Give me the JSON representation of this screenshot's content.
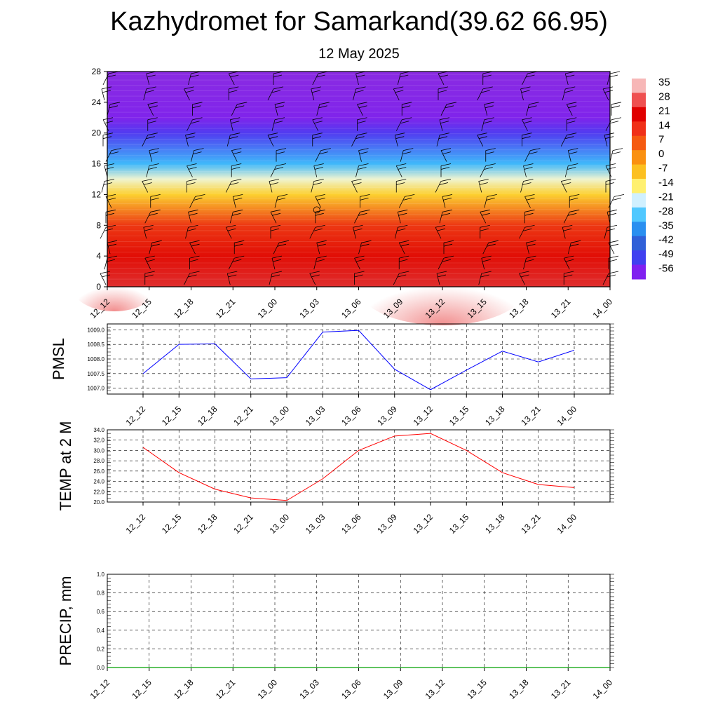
{
  "header": {
    "title": "Kazhydromet for Samarkand(39.62 66.95)",
    "subtitle": "12 May 2025"
  },
  "colors": {
    "pmsl_line": "#0000ff",
    "temp_line": "#ff0000",
    "precip_line": "#00a000",
    "grid": "#000000"
  },
  "chart_data": [
    {
      "type": "heatmap",
      "title": "",
      "x": [
        "12_12",
        "12_15",
        "12_18",
        "12_21",
        "13_00",
        "13_03",
        "13_06",
        "13_09",
        "13_12",
        "13_15",
        "13_18",
        "13_21",
        "14_00"
      ],
      "y_ticks": [
        0,
        4,
        8,
        12,
        16,
        20,
        24,
        28
      ],
      "ylim": [
        0,
        28
      ],
      "colorbar_labels": [
        "35",
        "28",
        "21",
        "14",
        "7",
        "0",
        "-7",
        "-14",
        "-21",
        "-28",
        "-35",
        "-42",
        "-49",
        "-56"
      ],
      "colorbar_colors": [
        "#f7b7b7",
        "#ef5050",
        "#e00000",
        "#f03018",
        "#f55a10",
        "#fa9010",
        "#fcc020",
        "#fff070",
        "#d0f0ff",
        "#50c8ff",
        "#2a8ff0",
        "#3060d8",
        "#4040f0",
        "#8020f0"
      ],
      "temperature_profile": [
        {
          "height": 0,
          "temp": 33
        },
        {
          "height": 4,
          "temp": 26
        },
        {
          "height": 8,
          "temp": 20
        },
        {
          "height": 12,
          "temp": 0
        },
        {
          "height": 14,
          "temp": -12
        },
        {
          "height": 16,
          "temp": -28
        },
        {
          "height": 20,
          "temp": -50
        },
        {
          "height": 22,
          "temp": -58
        },
        {
          "height": 28,
          "temp": -62
        }
      ]
    },
    {
      "type": "line",
      "ylabel": "PMSL",
      "x": [
        "12_12",
        "12_15",
        "12_18",
        "12_21",
        "13_00",
        "13_03",
        "13_06",
        "13_09",
        "13_12",
        "13_15",
        "13_18",
        "13_21",
        "14_00"
      ],
      "ylim": [
        1006.8,
        1009.2
      ],
      "y_ticks": [
        "1007.0",
        "1007.5",
        "1008.0",
        "1008.5",
        "1009.0"
      ],
      "series": [
        {
          "values": [
            1007.5,
            1008.5,
            1008.52,
            1007.32,
            1007.36,
            1008.92,
            1008.98,
            1007.65,
            1006.95,
            1007.62,
            1008.27,
            1007.9,
            1008.3
          ]
        }
      ]
    },
    {
      "type": "line",
      "ylabel": "TEMP at 2 M",
      "x": [
        "12_12",
        "12_15",
        "12_18",
        "12_21",
        "13_00",
        "13_03",
        "13_06",
        "13_09",
        "13_12",
        "13_15",
        "13_18",
        "13_21",
        "14_00"
      ],
      "ylim": [
        20.0,
        34.0
      ],
      "y_ticks": [
        "20.0",
        "22.0",
        "24.0",
        "26.0",
        "28.0",
        "30.0",
        "32.0",
        "34.0"
      ],
      "series": [
        {
          "values": [
            30.6,
            25.7,
            22.5,
            20.8,
            20.3,
            24.5,
            30.0,
            32.8,
            33.3,
            30.0,
            25.7,
            23.4,
            22.8
          ]
        }
      ]
    },
    {
      "type": "line",
      "ylabel": "PRECIP, mm",
      "x": [
        "12_12",
        "12_15",
        "12_18",
        "12_21",
        "13_00",
        "13_03",
        "13_06",
        "13_09",
        "13_12",
        "13_15",
        "13_18",
        "13_21",
        "14_00"
      ],
      "ylim": [
        0.0,
        1.0
      ],
      "y_ticks": [
        "0.0",
        "0.2",
        "0.4",
        "0.6",
        "0.8",
        "1.0"
      ],
      "series": [
        {
          "values": [
            0,
            0,
            0,
            0,
            0,
            0,
            0,
            0,
            0,
            0,
            0,
            0,
            0
          ]
        }
      ]
    }
  ]
}
